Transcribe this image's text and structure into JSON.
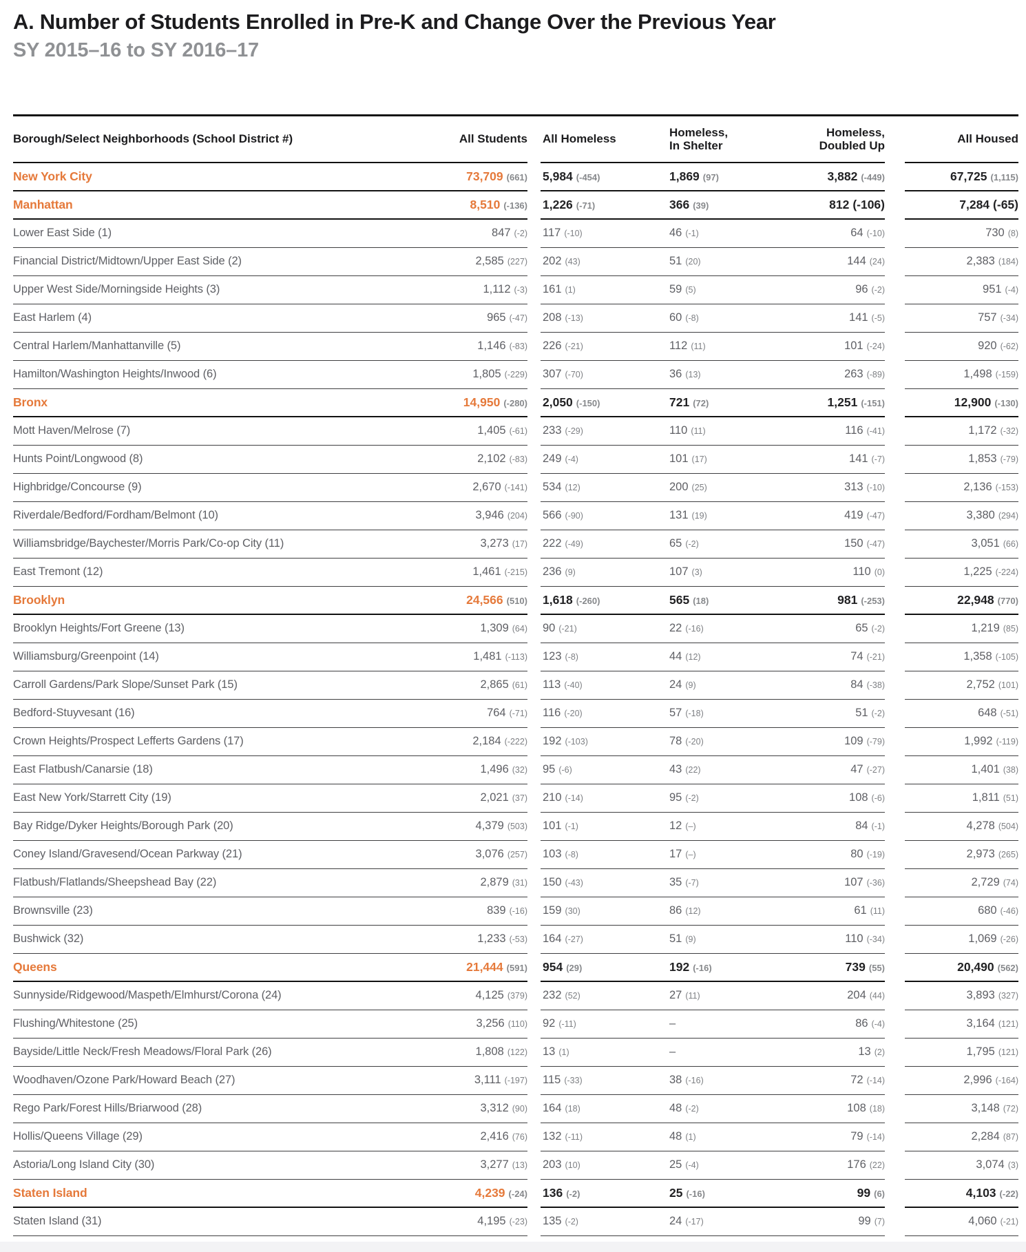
{
  "page": {
    "title": "A. Number of Students Enrolled in Pre-K and Change Over the Previous Year",
    "subtitle": "SY 2015–16 to SY 2016–17"
  },
  "colors": {
    "accent_orange": "#e5793a",
    "heading_gray": "#8f9194",
    "body_gray": "#5e5f64",
    "change_gray": "#7e8084",
    "rule_black": "#111111"
  },
  "table": {
    "columns": {
      "area": "Borough/Select Neighborhoods (School District #)",
      "students": "All Students",
      "homeless": "All Homeless",
      "shelter_line1": "Homeless,",
      "shelter_line2": "In Shelter",
      "doubled_line1": "Homeless,",
      "doubled_line2": "Doubled Up",
      "housed": "All Housed"
    },
    "rows": [
      {
        "type": "b",
        "label": "New York City",
        "students": [
          "73,709",
          "(661)"
        ],
        "homeless": [
          "5,984",
          "(-454)"
        ],
        "shelter": [
          "1,869",
          "(97)"
        ],
        "doubled": [
          "3,882",
          "(-449)"
        ],
        "housed": [
          "67,725",
          "(1,115)"
        ]
      },
      {
        "type": "b",
        "label": "Manhattan",
        "students": [
          "8,510",
          "(-136)"
        ],
        "homeless": [
          "1,226",
          "(-71)"
        ],
        "shelter": [
          "366",
          "(39)"
        ],
        "doubled": [
          "812",
          "(-106)",
          "big"
        ],
        "housed": [
          "7,284",
          "(-65)",
          "big"
        ]
      },
      {
        "type": "n",
        "label": "Lower East Side (1)",
        "students": [
          "847",
          "(-2)"
        ],
        "homeless": [
          "117",
          "(-10)"
        ],
        "shelter": [
          "46",
          "(-1)"
        ],
        "doubled": [
          "64",
          "(-10)"
        ],
        "housed": [
          "730",
          "(8)"
        ]
      },
      {
        "type": "n",
        "label": "Financial District/Midtown/Upper East Side (2)",
        "students": [
          "2,585",
          "(227)"
        ],
        "homeless": [
          "202",
          "(43)"
        ],
        "shelter": [
          "51",
          "(20)"
        ],
        "doubled": [
          "144",
          "(24)"
        ],
        "housed": [
          "2,383",
          "(184)"
        ]
      },
      {
        "type": "n",
        "label": "Upper West Side/Morningside Heights (3)",
        "students": [
          "1,112",
          "(-3)"
        ],
        "homeless": [
          "161",
          "(1)"
        ],
        "shelter": [
          "59",
          "(5)"
        ],
        "doubled": [
          "96",
          "(-2)"
        ],
        "housed": [
          "951",
          "(-4)"
        ]
      },
      {
        "type": "n",
        "label": "East Harlem (4)",
        "students": [
          "965",
          "(-47)"
        ],
        "homeless": [
          "208",
          "(-13)"
        ],
        "shelter": [
          "60",
          "(-8)"
        ],
        "doubled": [
          "141",
          "(-5)"
        ],
        "housed": [
          "757",
          "(-34)"
        ]
      },
      {
        "type": "n",
        "label": "Central Harlem/Manhattanville (5)",
        "students": [
          "1,146",
          "(-83)"
        ],
        "homeless": [
          "226",
          "(-21)"
        ],
        "shelter": [
          "112",
          "(11)"
        ],
        "doubled": [
          "101",
          "(-24)"
        ],
        "housed": [
          "920",
          "(-62)"
        ]
      },
      {
        "type": "n",
        "label": "Hamilton/Washington Heights/Inwood (6)",
        "students": [
          "1,805",
          "(-229)"
        ],
        "homeless": [
          "307",
          "(-70)"
        ],
        "shelter": [
          "36",
          "(13)"
        ],
        "doubled": [
          "263",
          "(-89)"
        ],
        "housed": [
          "1,498",
          "(-159)"
        ]
      },
      {
        "type": "b",
        "label": "Bronx",
        "students": [
          "14,950",
          "(-280)"
        ],
        "homeless": [
          "2,050",
          "(-150)"
        ],
        "shelter": [
          "721",
          "(72)"
        ],
        "doubled": [
          "1,251",
          "(-151)"
        ],
        "housed": [
          "12,900",
          "(-130)"
        ]
      },
      {
        "type": "n",
        "label": "Mott Haven/Melrose (7)",
        "students": [
          "1,405",
          "(-61)"
        ],
        "homeless": [
          "233",
          "(-29)"
        ],
        "shelter": [
          "110",
          "(11)"
        ],
        "doubled": [
          "116",
          "(-41)"
        ],
        "housed": [
          "1,172",
          "(-32)"
        ]
      },
      {
        "type": "n",
        "label": "Hunts Point/Longwood (8)",
        "students": [
          "2,102",
          "(-83)"
        ],
        "homeless": [
          "249",
          "(-4)"
        ],
        "shelter": [
          "101",
          "(17)"
        ],
        "doubled": [
          "141",
          "(-7)"
        ],
        "housed": [
          "1,853",
          "(-79)"
        ]
      },
      {
        "type": "n",
        "label": "Highbridge/Concourse (9)",
        "students": [
          "2,670",
          "(-141)"
        ],
        "homeless": [
          "534",
          "(12)"
        ],
        "shelter": [
          "200",
          "(25)"
        ],
        "doubled": [
          "313",
          "(-10)"
        ],
        "housed": [
          "2,136",
          "(-153)"
        ]
      },
      {
        "type": "n",
        "label": "Riverdale/Bedford/Fordham/Belmont (10)",
        "students": [
          "3,946",
          "(204)"
        ],
        "homeless": [
          "566",
          "(-90)"
        ],
        "shelter": [
          "131",
          "(19)"
        ],
        "doubled": [
          "419",
          "(-47)"
        ],
        "housed": [
          "3,380",
          "(294)"
        ]
      },
      {
        "type": "n",
        "label": "Williamsbridge/Baychester/Morris Park/Co-op City (11)",
        "students": [
          "3,273",
          "(17)"
        ],
        "homeless": [
          "222",
          "(-49)"
        ],
        "shelter": [
          "65",
          "(-2)"
        ],
        "doubled": [
          "150",
          "(-47)"
        ],
        "housed": [
          "3,051",
          "(66)"
        ]
      },
      {
        "type": "n",
        "label": "East Tremont (12)",
        "students": [
          "1,461",
          "(-215)"
        ],
        "homeless": [
          "236",
          "(9)"
        ],
        "shelter": [
          "107",
          "(3)"
        ],
        "doubled": [
          "110",
          "(0)"
        ],
        "housed": [
          "1,225",
          "(-224)"
        ]
      },
      {
        "type": "b",
        "label": "Brooklyn",
        "students": [
          "24,566",
          "(510)"
        ],
        "homeless": [
          "1,618",
          "(-260)"
        ],
        "shelter": [
          "565",
          "(18)"
        ],
        "doubled": [
          "981",
          "(-253)"
        ],
        "housed": [
          "22,948",
          "(770)"
        ]
      },
      {
        "type": "n",
        "label": "Brooklyn Heights/Fort Greene (13)",
        "students": [
          "1,309",
          "(64)"
        ],
        "homeless": [
          "90",
          "(-21)"
        ],
        "shelter": [
          "22",
          "(-16)"
        ],
        "doubled": [
          "65",
          "(-2)"
        ],
        "housed": [
          "1,219",
          "(85)"
        ]
      },
      {
        "type": "n",
        "label": "Williamsburg/Greenpoint (14)",
        "students": [
          "1,481",
          "(-113)"
        ],
        "homeless": [
          "123",
          "(-8)"
        ],
        "shelter": [
          "44",
          "(12)"
        ],
        "doubled": [
          "74",
          "(-21)"
        ],
        "housed": [
          "1,358",
          "(-105)"
        ]
      },
      {
        "type": "n",
        "label": "Carroll Gardens/Park Slope/Sunset Park (15)",
        "students": [
          "2,865",
          "(61)"
        ],
        "homeless": [
          "113",
          "(-40)"
        ],
        "shelter": [
          "24",
          "(9)"
        ],
        "doubled": [
          "84",
          "(-38)"
        ],
        "housed": [
          "2,752",
          "(101)"
        ]
      },
      {
        "type": "n",
        "label": "Bedford-Stuyvesant (16)",
        "students": [
          "764",
          "(-71)"
        ],
        "homeless": [
          "116",
          "(-20)"
        ],
        "shelter": [
          "57",
          "(-18)"
        ],
        "doubled": [
          "51",
          "(-2)"
        ],
        "housed": [
          "648",
          "(-51)"
        ]
      },
      {
        "type": "n",
        "label": "Crown Heights/Prospect Lefferts Gardens (17)",
        "students": [
          "2,184",
          "(-222)"
        ],
        "homeless": [
          "192",
          "(-103)"
        ],
        "shelter": [
          "78",
          "(-20)"
        ],
        "doubled": [
          "109",
          "(-79)"
        ],
        "housed": [
          "1,992",
          "(-119)"
        ]
      },
      {
        "type": "n",
        "label": "East Flatbush/Canarsie (18)",
        "students": [
          "1,496",
          "(32)"
        ],
        "homeless": [
          "95",
          "(-6)"
        ],
        "shelter": [
          "43",
          "(22)"
        ],
        "doubled": [
          "47",
          "(-27)"
        ],
        "housed": [
          "1,401",
          "(38)"
        ]
      },
      {
        "type": "n",
        "label": "East New York/Starrett City (19)",
        "students": [
          "2,021",
          "(37)"
        ],
        "homeless": [
          "210",
          "(-14)"
        ],
        "shelter": [
          "95",
          "(-2)"
        ],
        "doubled": [
          "108",
          "(-6)"
        ],
        "housed": [
          "1,811",
          "(51)"
        ]
      },
      {
        "type": "n",
        "label": "Bay Ridge/Dyker Heights/Borough Park (20)",
        "students": [
          "4,379",
          "(503)"
        ],
        "homeless": [
          "101",
          "(-1)"
        ],
        "shelter": [
          "12",
          "(–)"
        ],
        "doubled": [
          "84",
          "(-1)"
        ],
        "housed": [
          "4,278",
          "(504)"
        ]
      },
      {
        "type": "n",
        "label": "Coney Island/Gravesend/Ocean Parkway (21)",
        "students": [
          "3,076",
          "(257)"
        ],
        "homeless": [
          "103",
          "(-8)"
        ],
        "shelter": [
          "17",
          "(–)"
        ],
        "doubled": [
          "80",
          "(-19)"
        ],
        "housed": [
          "2,973",
          "(265)"
        ]
      },
      {
        "type": "n",
        "label": "Flatbush/Flatlands/Sheepshead Bay (22)",
        "students": [
          "2,879",
          "(31)"
        ],
        "homeless": [
          "150",
          "(-43)"
        ],
        "shelter": [
          "35",
          "(-7)"
        ],
        "doubled": [
          "107",
          "(-36)"
        ],
        "housed": [
          "2,729",
          "(74)"
        ]
      },
      {
        "type": "n",
        "label": "Brownsville (23)",
        "students": [
          "839",
          "(-16)"
        ],
        "homeless": [
          "159",
          "(30)"
        ],
        "shelter": [
          "86",
          "(12)"
        ],
        "doubled": [
          "61",
          "(11)"
        ],
        "housed": [
          "680",
          "(-46)"
        ]
      },
      {
        "type": "n",
        "label": "Bushwick (32)",
        "students": [
          "1,233",
          "(-53)"
        ],
        "homeless": [
          "164",
          "(-27)"
        ],
        "shelter": [
          "51",
          "(9)"
        ],
        "doubled": [
          "110",
          "(-34)"
        ],
        "housed": [
          "1,069",
          "(-26)"
        ]
      },
      {
        "type": "b",
        "label": "Queens",
        "students": [
          "21,444",
          "(591)"
        ],
        "homeless": [
          "954",
          "(29)"
        ],
        "shelter": [
          "192",
          "(-16)"
        ],
        "doubled": [
          "739",
          "(55)"
        ],
        "housed": [
          "20,490",
          "(562)"
        ]
      },
      {
        "type": "n",
        "label": "Sunnyside/Ridgewood/Maspeth/Elmhurst/Corona (24)",
        "students": [
          "4,125",
          "(379)"
        ],
        "homeless": [
          "232",
          "(52)"
        ],
        "shelter": [
          "27",
          "(11)"
        ],
        "doubled": [
          "204",
          "(44)"
        ],
        "housed": [
          "3,893",
          "(327)"
        ]
      },
      {
        "type": "n",
        "label": "Flushing/Whitestone (25)",
        "students": [
          "3,256",
          "(110)"
        ],
        "homeless": [
          "92",
          "(-11)"
        ],
        "shelter": [
          "–",
          null
        ],
        "doubled": [
          "86",
          "(-4)"
        ],
        "housed": [
          "3,164",
          "(121)"
        ]
      },
      {
        "type": "n",
        "label": "Bayside/Little Neck/Fresh Meadows/Floral Park (26)",
        "students": [
          "1,808",
          "(122)"
        ],
        "homeless": [
          "13",
          "(1)"
        ],
        "shelter": [
          "–",
          null
        ],
        "doubled": [
          "13",
          "(2)"
        ],
        "housed": [
          "1,795",
          "(121)"
        ]
      },
      {
        "type": "n",
        "label": "Woodhaven/Ozone Park/Howard Beach (27)",
        "students": [
          "3,111",
          "(-197)"
        ],
        "homeless": [
          "115",
          "(-33)"
        ],
        "shelter": [
          "38",
          "(-16)"
        ],
        "doubled": [
          "72",
          "(-14)"
        ],
        "housed": [
          "2,996",
          "(-164)"
        ]
      },
      {
        "type": "n",
        "label": "Rego Park/Forest Hills/Briarwood (28)",
        "students": [
          "3,312",
          "(90)"
        ],
        "homeless": [
          "164",
          "(18)"
        ],
        "shelter": [
          "48",
          "(-2)"
        ],
        "doubled": [
          "108",
          "(18)"
        ],
        "housed": [
          "3,148",
          "(72)"
        ]
      },
      {
        "type": "n",
        "label": "Hollis/Queens Village (29)",
        "students": [
          "2,416",
          "(76)"
        ],
        "homeless": [
          "132",
          "(-11)"
        ],
        "shelter": [
          "48",
          "(1)"
        ],
        "doubled": [
          "79",
          "(-14)"
        ],
        "housed": [
          "2,284",
          "(87)"
        ]
      },
      {
        "type": "n",
        "label": "Astoria/Long Island City (30)",
        "students": [
          "3,277",
          "(13)"
        ],
        "homeless": [
          "203",
          "(10)"
        ],
        "shelter": [
          "25",
          "(-4)"
        ],
        "doubled": [
          "176",
          "(22)"
        ],
        "housed": [
          "3,074",
          "(3)"
        ]
      },
      {
        "type": "b",
        "label": "Staten Island",
        "students": [
          "4,239",
          "(-24)"
        ],
        "homeless": [
          "136",
          "(-2)"
        ],
        "shelter": [
          "25",
          "(-16)"
        ],
        "doubled": [
          "99",
          "(6)"
        ],
        "housed": [
          "4,103",
          "(-22)"
        ]
      },
      {
        "type": "n",
        "label": "Staten Island (31)",
        "students": [
          "4,195",
          "(-23)"
        ],
        "homeless": [
          "135",
          "(-2)"
        ],
        "shelter": [
          "24",
          "(-17)"
        ],
        "doubled": [
          "99",
          "(7)"
        ],
        "housed": [
          "4,060",
          "(-21)"
        ]
      }
    ]
  }
}
